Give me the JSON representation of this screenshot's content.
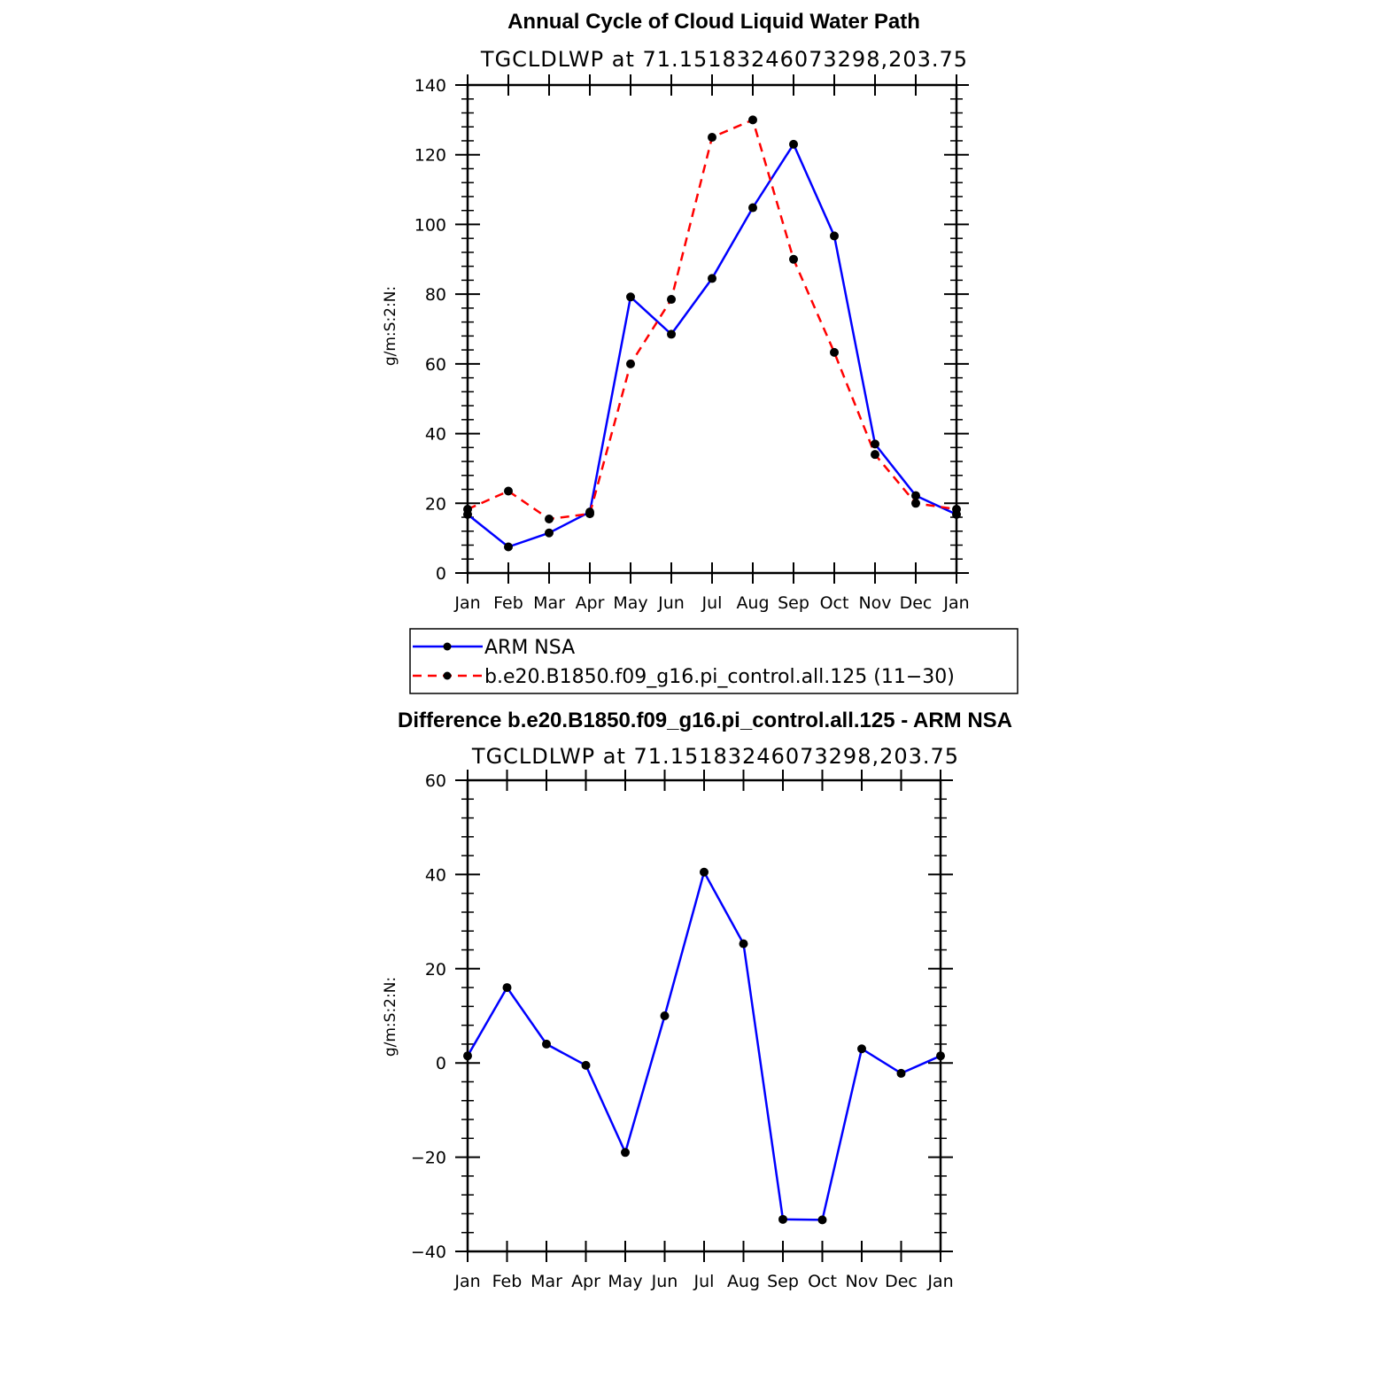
{
  "chart_data": [
    {
      "type": "line",
      "title": "Annual Cycle of Cloud Liquid Water Path",
      "subtitle": "TGCLDLWP  at  71.15183246073298,203.75",
      "ylabel": "g/m:S:2:N:",
      "xlabel": "",
      "categories": [
        "Jan",
        "Feb",
        "Mar",
        "Apr",
        "May",
        "Jun",
        "Jul",
        "Aug",
        "Sep",
        "Oct",
        "Nov",
        "Dec",
        "Jan"
      ],
      "yticks": [
        0,
        20,
        40,
        60,
        80,
        100,
        120,
        140
      ],
      "ylim": [
        0,
        140
      ],
      "grid": false,
      "legend_position": "bottom",
      "series": [
        {
          "name": "ARM  NSA",
          "color": "#0000ff",
          "dash": "solid",
          "values": [
            16.8,
            7.5,
            11.5,
            17.5,
            79.2,
            68.5,
            84.5,
            104.8,
            123.0,
            96.7,
            37.0,
            22.2,
            16.8
          ]
        },
        {
          "name": "b.e20.B1850.f09_g16.pi_control.all.125 (11−30)",
          "color": "#ff0000",
          "dash": "dashed",
          "values": [
            18.3,
            23.5,
            15.5,
            17.0,
            60.0,
            78.5,
            125.0,
            130.0,
            90.0,
            63.3,
            34.0,
            20.0,
            18.3
          ]
        }
      ]
    },
    {
      "type": "line",
      "title": "Difference b.e20.B1850.f09_g16.pi_control.all.125 - ARM NSA",
      "subtitle": "TGCLDLWP  at  71.15183246073298,203.75",
      "ylabel": "g/m:S:2:N:",
      "xlabel": "",
      "categories": [
        "Jan",
        "Feb",
        "Mar",
        "Apr",
        "May",
        "Jun",
        "Jul",
        "Aug",
        "Sep",
        "Oct",
        "Nov",
        "Dec",
        "Jan"
      ],
      "yticks": [
        -40,
        -20,
        0,
        20,
        40,
        60
      ],
      "yticklabels": [
        "−40",
        "−20",
        "0",
        "20",
        "40",
        "60"
      ],
      "ylim": [
        -40,
        60
      ],
      "grid": false,
      "series": [
        {
          "color": "#0000ff",
          "dash": "solid",
          "values": [
            1.5,
            16.0,
            4.0,
            -0.5,
            -19.0,
            10.0,
            40.5,
            25.3,
            -33.2,
            -33.3,
            3.0,
            -2.2,
            1.5
          ]
        }
      ]
    }
  ]
}
